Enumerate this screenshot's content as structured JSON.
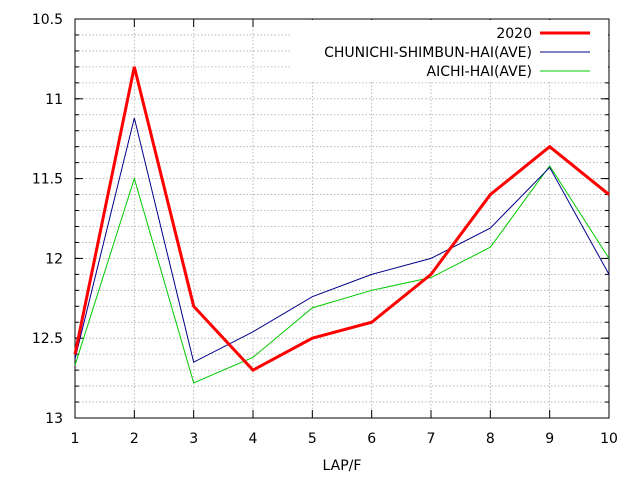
{
  "chart_data": {
    "type": "line",
    "title": "",
    "xlabel": "LAP/F",
    "ylabel": "",
    "x": [
      1,
      2,
      3,
      4,
      5,
      6,
      7,
      8,
      9,
      10
    ],
    "xlim": [
      1,
      10
    ],
    "ylim": [
      13.0,
      10.5
    ],
    "y_inverted": true,
    "y_ticks": [
      10.5,
      11,
      11.5,
      12,
      12.5,
      13
    ],
    "y_tick_labels": [
      "10.5",
      "11",
      "11.5",
      "12",
      "12.5",
      "13"
    ],
    "x_tick_labels": [
      "1",
      "2",
      "3",
      "4",
      "5",
      "6",
      "7",
      "8",
      "9",
      "10"
    ],
    "y_minor_step": 0.1,
    "grid": true,
    "legend_position": "top-right",
    "series": [
      {
        "name": "2020",
        "color": "#ff0000",
        "values": [
          12.6,
          10.8,
          12.3,
          12.7,
          12.5,
          12.4,
          12.1,
          11.6,
          11.3,
          11.6
        ]
      },
      {
        "name": "CHUNICHI-SHIMBUN-HAI(AVE)",
        "color": "#00008b",
        "values": [
          12.63,
          11.12,
          12.65,
          12.46,
          12.24,
          12.1,
          12.0,
          11.81,
          11.43,
          12.1
        ]
      },
      {
        "name": "AICHI-HAI(AVE)",
        "color": "#00cc00",
        "values": [
          12.67,
          11.5,
          12.78,
          12.62,
          12.31,
          12.2,
          12.12,
          11.93,
          11.42,
          12.0
        ]
      }
    ]
  }
}
